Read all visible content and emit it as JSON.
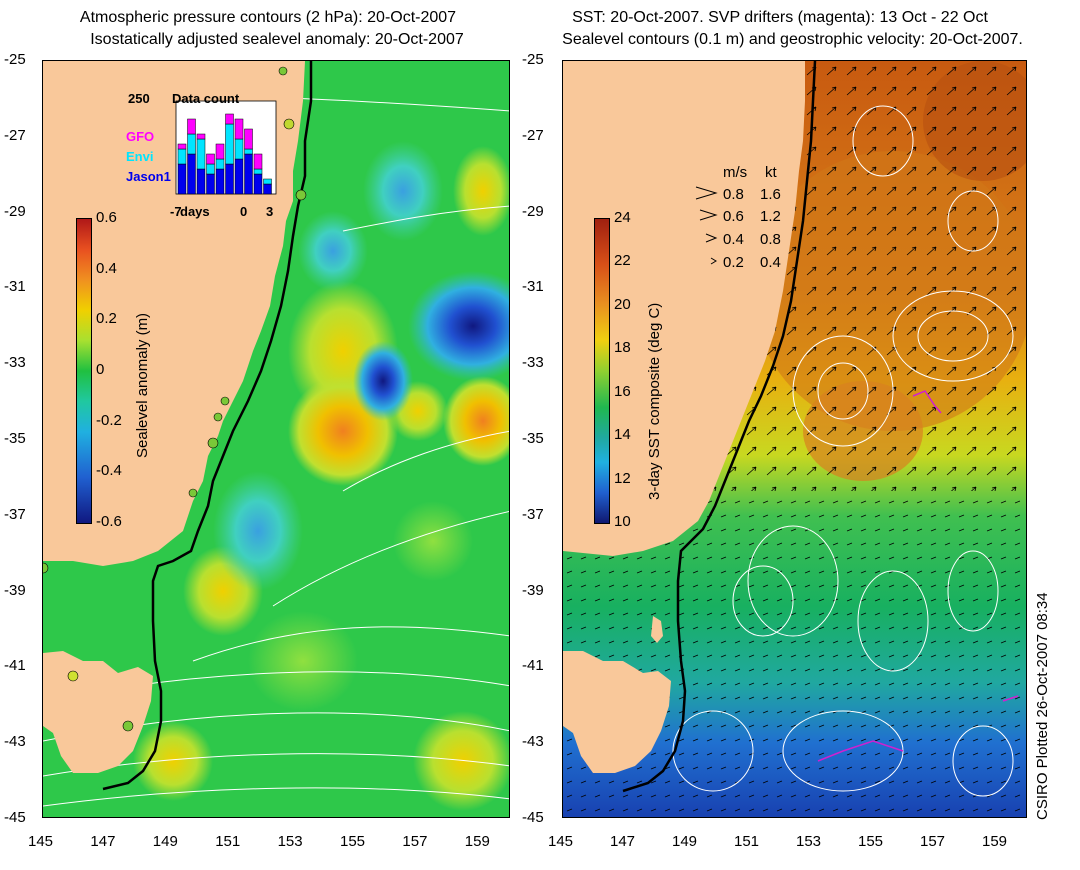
{
  "left_panel": {
    "title_line1": "Atmospheric pressure contours (2 hPa): 20-Oct-2007",
    "title_line2": "Isostatically adjusted sealevel anomaly: 20-Oct-2007",
    "colorbar_label": "Sealevel anomaly (m)",
    "colorbar_ticks": [
      "0.6",
      "0.4",
      "0.2",
      "0",
      "-0.2",
      "-0.4",
      "-0.6"
    ],
    "inset": {
      "max_label": "250",
      "title": "Data count",
      "series": [
        {
          "name": "GFO",
          "color": "#ff00ff"
        },
        {
          "name": "Envi",
          "color": "#00e5ff"
        },
        {
          "name": "Jason1",
          "color": "#0000ee"
        }
      ],
      "x_left": "-7",
      "x_days": "days",
      "x_mid": "0",
      "x_right": "3"
    }
  },
  "right_panel": {
    "title_line1": "SST: 20-Oct-2007. SVP drifters (magenta): 13 Oct - 22 Oct",
    "title_line2": "Sealevel contours (0.1 m) and geostrophic velocity: 20-Oct-2007.",
    "colorbar_label": "3-day SST composite (deg C)",
    "colorbar_ticks": [
      "24",
      "22",
      "20",
      "18",
      "16",
      "14",
      "12",
      "10"
    ],
    "velocity_legend": {
      "header_ms": "m/s",
      "header_kt": "kt",
      "rows": [
        {
          "ms": "0.8",
          "kt": "1.6"
        },
        {
          "ms": "0.6",
          "kt": "1.2"
        },
        {
          "ms": "0.4",
          "kt": "0.8"
        },
        {
          "ms": "0.2",
          "kt": "0.4"
        }
      ]
    }
  },
  "lat_ticks": [
    "-25",
    "-27",
    "-29",
    "-31",
    "-33",
    "-35",
    "-37",
    "-39",
    "-41",
    "-43",
    "-45"
  ],
  "lon_ticks": [
    "145",
    "147",
    "149",
    "151",
    "153",
    "155",
    "157",
    "159"
  ],
  "credit": "CSIRO Plotted 26-Oct-2007 08:34",
  "colors": {
    "land": "#f9c89a",
    "coast": "#000000",
    "contour": "#ffffff"
  }
}
